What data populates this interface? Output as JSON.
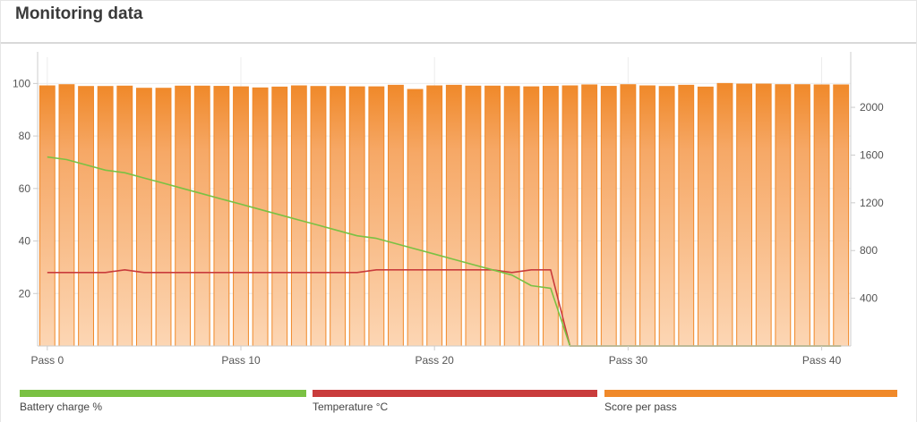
{
  "header": {
    "title": "Monitoring data"
  },
  "colors": {
    "battery": "#7ac143",
    "temperature": "#c93c3c",
    "score": "#f0892a",
    "score_light": "#fcd2ad",
    "grid": "#ececec",
    "axis": "#cccccc"
  },
  "legend": [
    {
      "label": "Battery charge %",
      "color": "#7ac143"
    },
    {
      "label": "Temperature °C",
      "color": "#c93c3c"
    },
    {
      "label": "Score per pass",
      "color": "#f0892a"
    }
  ],
  "chart_data": {
    "type": "bar",
    "title": "",
    "xlabel": "",
    "x_ticks": [
      "Pass 0",
      "Pass 10",
      "Pass 20",
      "Pass 30",
      "Pass 40"
    ],
    "x_tick_passes": [
      0,
      10,
      20,
      30,
      40
    ],
    "y_left": {
      "ticks": [
        20,
        40,
        60,
        80,
        100
      ],
      "range": [
        0,
        110
      ]
    },
    "y_right": {
      "ticks": [
        400,
        800,
        1200,
        1600,
        2000
      ],
      "range": [
        0,
        2420
      ]
    },
    "grid": true,
    "series": [
      {
        "name": "Score per pass",
        "type": "bar",
        "axis": "right",
        "values": [
          2180,
          2190,
          2175,
          2175,
          2178,
          2160,
          2160,
          2178,
          2178,
          2176,
          2172,
          2163,
          2170,
          2180,
          2175,
          2175,
          2172,
          2172,
          2185,
          2150,
          2180,
          2185,
          2178,
          2178,
          2175,
          2172,
          2176,
          2180,
          2188,
          2176,
          2190,
          2180,
          2175,
          2185,
          2170,
          2200,
          2195,
          2195,
          2190,
          2190,
          2188,
          2188
        ]
      },
      {
        "name": "Battery charge %",
        "type": "line",
        "axis": "left",
        "values": [
          72,
          71,
          69,
          67,
          66,
          64,
          62,
          60,
          58,
          56,
          54,
          52,
          50,
          48,
          46,
          44,
          42,
          41,
          39,
          37,
          35,
          33,
          31,
          29,
          27,
          23,
          22,
          0,
          0,
          0,
          0,
          0,
          0,
          0,
          0,
          0,
          0,
          0,
          0,
          0,
          0,
          0
        ]
      },
      {
        "name": "Temperature °C",
        "type": "line",
        "axis": "left",
        "values": [
          28,
          28,
          28,
          28,
          29,
          28,
          28,
          28,
          28,
          28,
          28,
          28,
          28,
          28,
          28,
          28,
          28,
          29,
          29,
          29,
          29,
          29,
          29,
          29,
          28,
          29,
          29,
          0,
          0,
          0,
          0,
          0,
          0,
          0,
          0,
          0,
          0,
          0,
          0,
          0,
          0,
          0
        ]
      }
    ]
  }
}
